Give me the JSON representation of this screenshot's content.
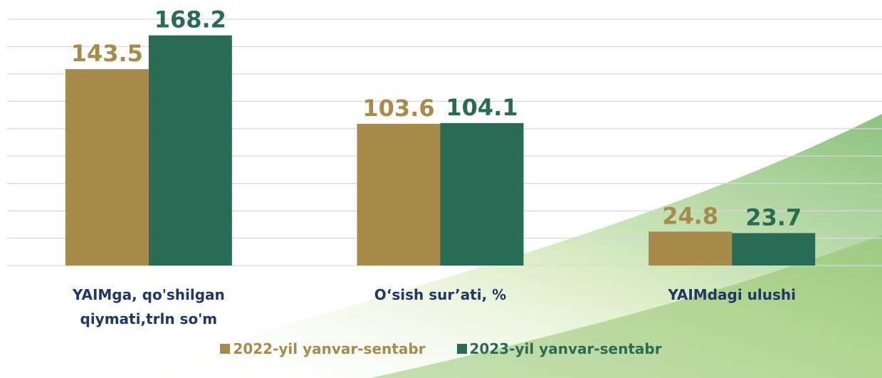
{
  "chart_data": {
    "type": "bar",
    "categories": [
      "YAIMga, qo'shilgan qiymati,trln so'm",
      "O‘sish sur’ati, %",
      "YAIMdagi ulushi"
    ],
    "series": [
      {
        "name": "2022-yil yanvar-sentabr",
        "color": "#a68b4a",
        "values": [
          143.5,
          103.6,
          24.8
        ]
      },
      {
        "name": "2023-yil yanvar-sentabr",
        "color": "#2a6b55",
        "values": [
          168.2,
          104.1,
          23.7
        ]
      }
    ],
    "ylim": [
      0,
      180
    ],
    "yticks": [
      0,
      20,
      40,
      60,
      80,
      100,
      120,
      140,
      160,
      180
    ],
    "grid": true
  }
}
